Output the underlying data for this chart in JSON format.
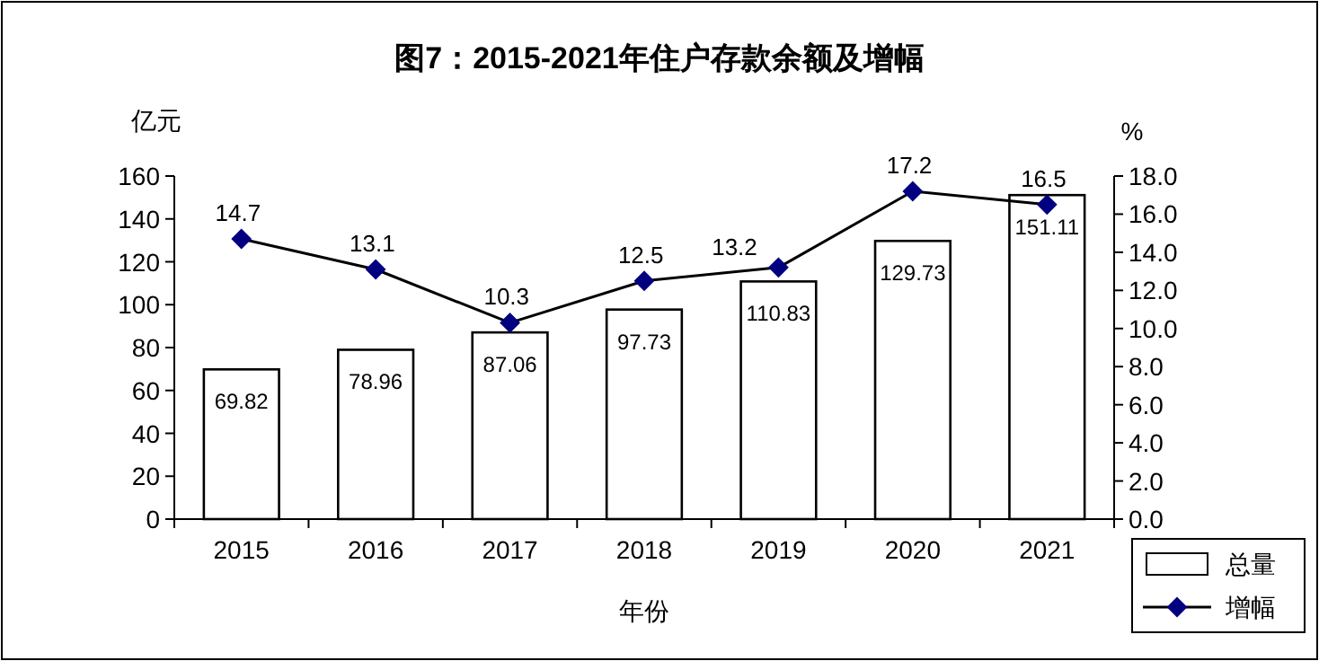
{
  "chart_data": {
    "type": "bar",
    "title": "图7：2015-2021年住户存款余额及增幅",
    "categories": [
      "2015",
      "2016",
      "2017",
      "2018",
      "2019",
      "2020",
      "2021"
    ],
    "series": [
      {
        "name": "总量",
        "color": "#ffffff",
        "values": [
          69.82,
          78.96,
          87.06,
          97.73,
          110.83,
          129.73,
          151.11
        ]
      },
      {
        "name": "增幅",
        "type": "line",
        "axis": "y2",
        "color": "#000080",
        "values": [
          14.7,
          13.1,
          10.3,
          12.5,
          13.2,
          17.2,
          16.5
        ]
      }
    ],
    "xlabel": "年份",
    "ylabel": "亿元",
    "y2label": "%",
    "ylim": [
      0,
      160
    ],
    "yticks": [
      0,
      20,
      40,
      60,
      80,
      100,
      120,
      140,
      160
    ],
    "y2lim": [
      0,
      18
    ],
    "y2ticks": [
      {
        "value": 0,
        "label": "0.0"
      },
      {
        "value": 2,
        "label": "2.0"
      },
      {
        "value": 4,
        "label": "4.0"
      },
      {
        "value": 6,
        "label": "6.0"
      },
      {
        "value": 8,
        "label": "8.0"
      },
      {
        "value": 10,
        "label": "10.0"
      },
      {
        "value": 12,
        "label": "12.0"
      },
      {
        "value": 14,
        "label": "14.0"
      },
      {
        "value": 16,
        "label": "16.0"
      },
      {
        "value": 18,
        "label": "18.0"
      }
    ],
    "data_labels": true,
    "legend": "bottom right",
    "marker": "diamond",
    "line_style": "solid",
    "grid": false
  }
}
